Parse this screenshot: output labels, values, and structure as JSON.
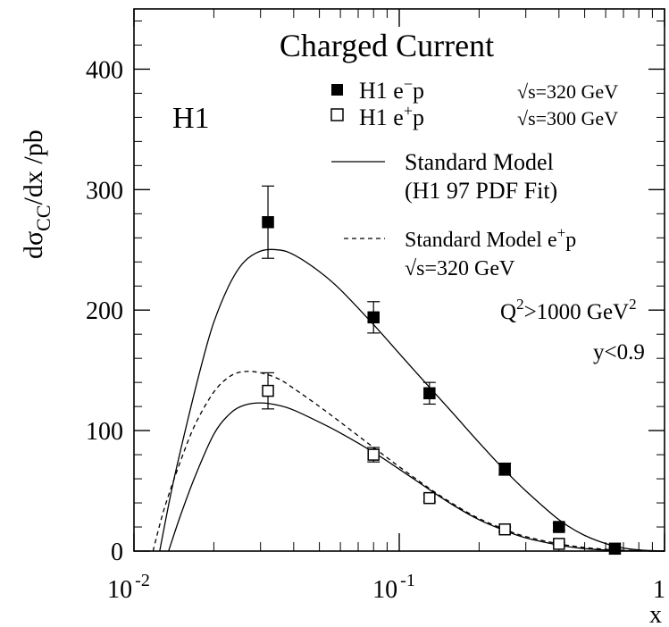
{
  "chart_data": {
    "type": "scatter",
    "title": "Charged Current",
    "experiment_label": "H1",
    "xlabel": "x",
    "ylabel": {
      "prefix": "dσ",
      "sub": "CC",
      "suffix": "/dx  /pb"
    },
    "xscale": "log",
    "xlim": [
      0.01,
      1
    ],
    "ylim": [
      0,
      450
    ],
    "x_ticks": [
      {
        "value": 0.01,
        "base": "10",
        "exp": "-2"
      },
      {
        "value": 0.1,
        "base": "10",
        "exp": "-1"
      },
      {
        "value": 1,
        "base": "1",
        "exp": ""
      }
    ],
    "y_ticks": [
      0,
      100,
      200,
      300,
      400
    ],
    "annotations": {
      "q2_cut": {
        "base": "Q",
        "sup1": "2",
        "text": ">1000 GeV",
        "sup2": "2"
      },
      "y_cut": "y<0.9"
    },
    "legend": {
      "position": "top-right",
      "entries": [
        {
          "marker": "filled-square",
          "label": "H1 e",
          "sup": "−",
          "label_end": "p",
          "energy": "√s=320 GeV"
        },
        {
          "marker": "open-square",
          "label": "H1 e",
          "sup": "+",
          "label_end": "p",
          "energy": "√s=300 GeV"
        },
        {
          "line": "solid",
          "line1": "Standard Model",
          "line2": "(H1 97 PDF Fit)"
        },
        {
          "line": "dashed",
          "line1": "Standard Model e",
          "line1_sup": "+",
          "line1_end": "p",
          "line2": "√s=320 GeV"
        }
      ]
    },
    "series": [
      {
        "name": "H1 e−p √s=320 GeV",
        "marker": "filled-square",
        "points": [
          {
            "x": 0.032,
            "y": 273,
            "err_up": 30,
            "err_down": 30
          },
          {
            "x": 0.08,
            "y": 194,
            "err_up": 13,
            "err_down": 13
          },
          {
            "x": 0.13,
            "y": 131,
            "err_up": 9,
            "err_down": 9
          },
          {
            "x": 0.25,
            "y": 68,
            "err_up": 5,
            "err_down": 5
          },
          {
            "x": 0.4,
            "y": 20,
            "err_up": 3,
            "err_down": 3
          },
          {
            "x": 0.65,
            "y": 2,
            "err_up": 1,
            "err_down": 1
          }
        ]
      },
      {
        "name": "H1 e+p √s=300 GeV",
        "marker": "open-square",
        "points": [
          {
            "x": 0.032,
            "y": 133,
            "err_up": 15,
            "err_down": 15
          },
          {
            "x": 0.08,
            "y": 80,
            "err_up": 6,
            "err_down": 6
          },
          {
            "x": 0.13,
            "y": 44,
            "err_up": 3,
            "err_down": 3
          },
          {
            "x": 0.25,
            "y": 18,
            "err_up": 2,
            "err_down": 2
          },
          {
            "x": 0.4,
            "y": 6,
            "err_up": 1,
            "err_down": 1
          }
        ]
      }
    ],
    "curves": [
      {
        "name": "Standard Model (H1 97 PDF Fit) e−p",
        "style": "solid",
        "x": [
          0.0125,
          0.014,
          0.016,
          0.018,
          0.02,
          0.023,
          0.026,
          0.03,
          0.035,
          0.04,
          0.05,
          0.06,
          0.08,
          0.1,
          0.13,
          0.16,
          0.2,
          0.25,
          0.3,
          0.4,
          0.5,
          0.65,
          0.8,
          1.0
        ],
        "y": [
          0,
          55,
          110,
          155,
          190,
          222,
          240,
          249,
          250,
          246,
          232,
          217,
          188,
          164,
          136,
          114,
          90,
          67,
          50,
          26,
          13,
          4,
          1,
          0
        ]
      },
      {
        "name": "Standard Model (H1 97 PDF Fit) e+p",
        "style": "solid",
        "x": [
          0.0135,
          0.015,
          0.017,
          0.02,
          0.023,
          0.026,
          0.03,
          0.035,
          0.04,
          0.05,
          0.06,
          0.08,
          0.1,
          0.13,
          0.16,
          0.2,
          0.25,
          0.3,
          0.4,
          0.5,
          0.65,
          0.8,
          1.0
        ],
        "y": [
          0,
          30,
          62,
          97,
          114,
          121,
          123,
          121,
          117,
          107,
          98,
          82,
          68,
          51,
          38,
          26,
          17,
          11,
          5,
          2,
          0.5,
          0.2,
          0
        ]
      },
      {
        "name": "Standard Model e+p √s=320 GeV",
        "style": "dashed",
        "x": [
          0.0118,
          0.013,
          0.015,
          0.017,
          0.02,
          0.023,
          0.026,
          0.03,
          0.035,
          0.04,
          0.05,
          0.06,
          0.08,
          0.1,
          0.13,
          0.16,
          0.2,
          0.25,
          0.3,
          0.4,
          0.5,
          0.65,
          0.8,
          1.0
        ],
        "y": [
          0,
          35,
          75,
          105,
          132,
          145,
          149,
          148,
          143,
          135,
          120,
          107,
          86,
          70,
          52,
          39,
          27,
          18,
          12,
          6,
          3,
          1,
          0.3,
          0
        ]
      }
    ]
  }
}
